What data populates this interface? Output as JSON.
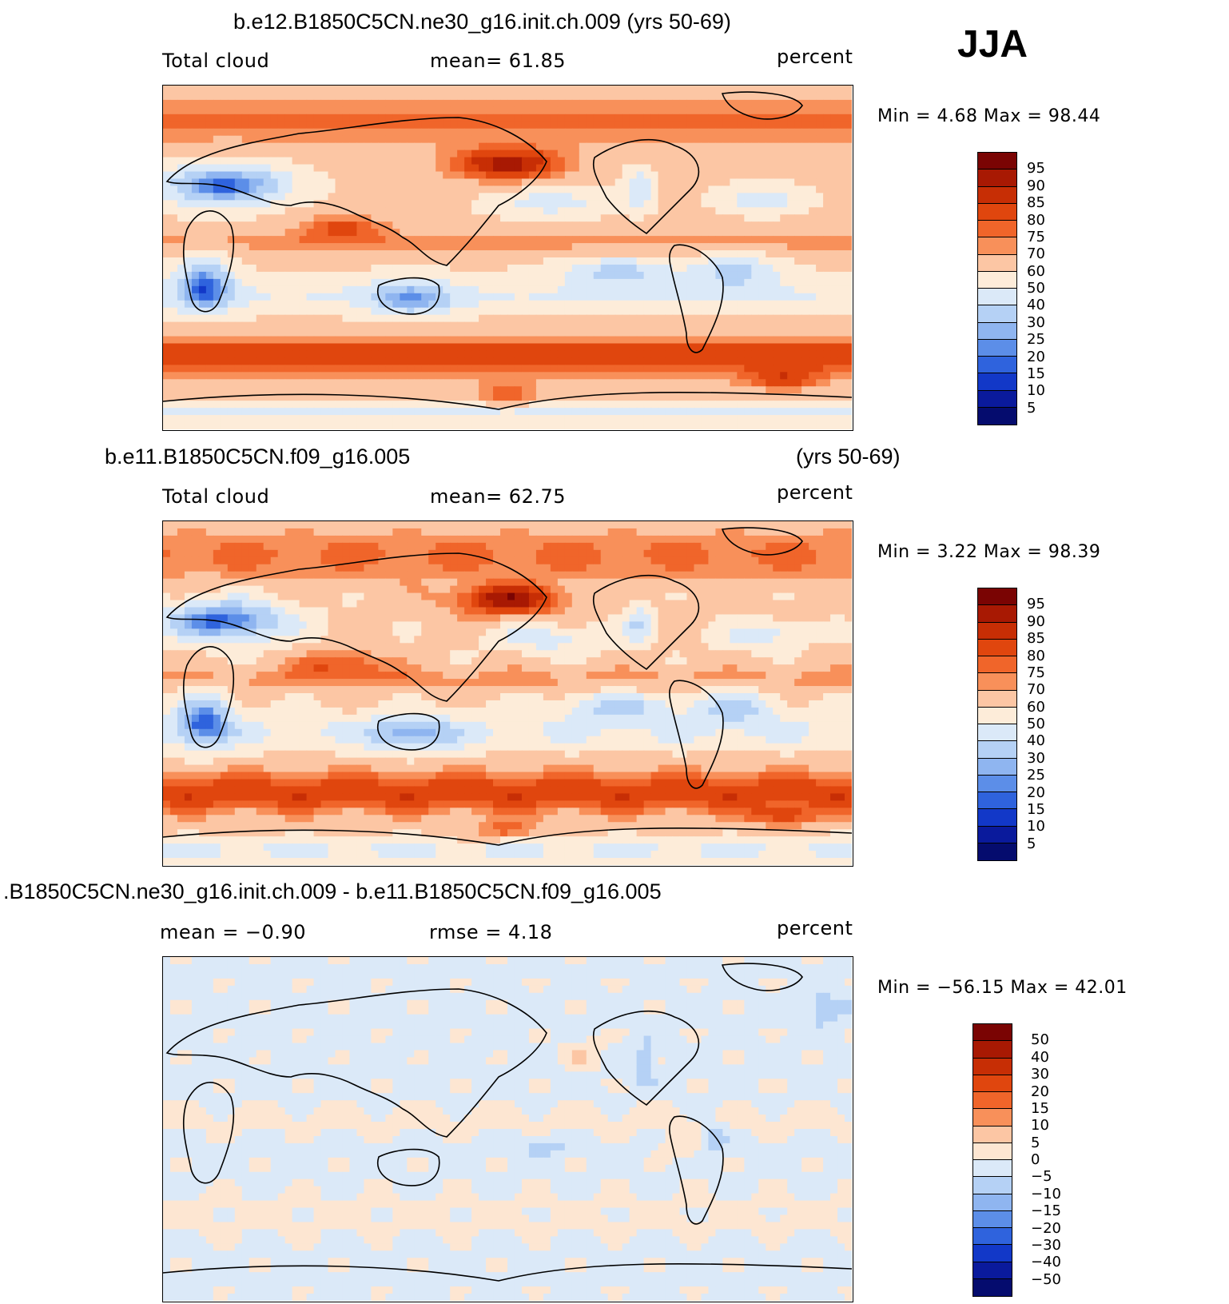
{
  "season": "JJA",
  "panels": [
    {
      "title": "b.e12.B1850C5CN.ne30_g16.init.ch.009 (yrs 50-69)",
      "left_label": "Total cloud",
      "center_label": "mean=   61.85",
      "units": "percent",
      "min_max": "Min =    4.68 Max =   98.44",
      "colorbar_levels": [
        "95",
        "90",
        "85",
        "80",
        "75",
        "70",
        "60",
        "50",
        "40",
        "30",
        "25",
        "20",
        "15",
        "10",
        "5"
      ],
      "colorbar_colors": [
        "#7a0403",
        "#a81903",
        "#c72e05",
        "#e0460e",
        "#f0652a",
        "#f8905a",
        "#fcc6a4",
        "#fdecd9",
        "#dbe9f8",
        "#b5d1f5",
        "#8fb5f0",
        "#5c8ee8",
        "#2f63dd",
        "#1238c8",
        "#0a1a9c",
        "#050c6e"
      ],
      "field": "cloud"
    },
    {
      "title": "b.e11.B1850C5CN.f09_g16.005",
      "title_right": "(yrs 50-69)",
      "left_label": "Total cloud",
      "center_label": "mean=   62.75",
      "units": "percent",
      "min_max": "Min =    3.22 Max =   98.39",
      "colorbar_levels": [
        "95",
        "90",
        "85",
        "80",
        "75",
        "70",
        "60",
        "50",
        "40",
        "30",
        "25",
        "20",
        "15",
        "10",
        "5"
      ],
      "colorbar_colors": [
        "#7a0403",
        "#a81903",
        "#c72e05",
        "#e0460e",
        "#f0652a",
        "#f8905a",
        "#fcc6a4",
        "#fdecd9",
        "#dbe9f8",
        "#b5d1f5",
        "#8fb5f0",
        "#5c8ee8",
        "#2f63dd",
        "#1238c8",
        "#0a1a9c",
        "#050c6e"
      ],
      "field": "cloud"
    },
    {
      "title": ".B1850C5CN.ne30_g16.init.ch.009 - b.e11.B1850C5CN.f09_g16.005",
      "left_label": "mean =   −0.90",
      "center_label": "rmse =    4.18",
      "units": "percent",
      "min_max": "Min = −56.15 Max =   42.01",
      "colorbar_levels": [
        "50",
        "40",
        "30",
        "20",
        "15",
        "10",
        "5",
        "0",
        "−5",
        "−10",
        "−15",
        "−20",
        "−30",
        "−40",
        "−50"
      ],
      "colorbar_colors": [
        "#7a0403",
        "#a81903",
        "#c72e05",
        "#e0460e",
        "#f0652a",
        "#f8905a",
        "#fcc6a4",
        "#fde6d2",
        "#dbe9f8",
        "#b5d1f5",
        "#8fb5f0",
        "#5c8ee8",
        "#2f63dd",
        "#1238c8",
        "#0a1a9c",
        "#050c6e"
      ],
      "field": "diff"
    }
  ]
}
